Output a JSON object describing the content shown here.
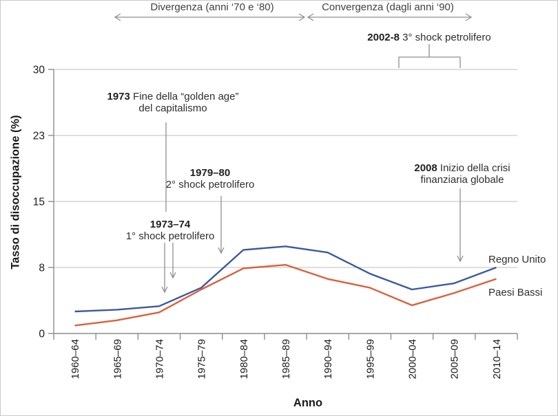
{
  "figure": {
    "xlabel": "Anno",
    "ylabel": "Tasso di disoccupazione (%)"
  },
  "phases": {
    "divergenza": "Divergenza (anni ‘70 e ‘80)",
    "convergenza": "Convergenza (dagli anni ‘90)"
  },
  "annotations": {
    "shock3": {
      "year": "2002-8",
      "text": "3° shock petrolifero"
    },
    "golden_age": {
      "year": "1973",
      "line1": "Fine della “golden age”",
      "line2": "del capitalismo"
    },
    "shock2": {
      "year": "1979–80",
      "text": "2° shock petrolifero"
    },
    "shock1": {
      "year": "1973–74",
      "text": "1° shock petrolifero"
    },
    "crisis": {
      "year": "2008",
      "line1": "Inizio della crisi",
      "line2": "finanziaria globale"
    }
  },
  "series_labels": {
    "uk": "Regno Unito",
    "nl": "Paesi Bassi"
  },
  "colors": {
    "uk_line": "#3b59a0",
    "nl_line": "#dd5f3a",
    "grid": "#c9c9c9",
    "axis": "#8c8c8c",
    "annotation_gray": "#8f8f8f",
    "tick_text": "#1a1a1a"
  },
  "chart_data": {
    "type": "line",
    "title": "",
    "xlabel": "Anno",
    "ylabel": "Tasso di disoccupazione (%)",
    "categories": [
      "1960–64",
      "1965–69",
      "1970–74",
      "1975–79",
      "1980–84",
      "1985–89",
      "1990–94",
      "1995–99",
      "2000–04",
      "2005–09",
      "2010–14"
    ],
    "series": [
      {
        "name": "Regno Unito",
        "color": "#3b59a0",
        "values": [
          2.5,
          2.7,
          3.1,
          5.2,
          9.5,
          9.9,
          9.2,
          6.8,
          5.0,
          5.7,
          7.5
        ]
      },
      {
        "name": "Paesi Bassi",
        "color": "#dd5f3a",
        "values": [
          0.9,
          1.5,
          2.4,
          5.0,
          7.4,
          7.8,
          6.2,
          5.2,
          3.2,
          4.6,
          6.2
        ]
      }
    ],
    "ylim": [
      0,
      30
    ],
    "yticks": {
      "values": [
        0,
        7.5,
        15,
        22.5,
        30
      ],
      "labels": [
        "0",
        "8",
        "15",
        "23",
        "30"
      ]
    },
    "grid": "horizontal",
    "legend_position": "right-inline",
    "annotations_text": [
      "Divergenza (anni ‘70 e ‘80)",
      "Convergenza (dagli anni ‘90)",
      "2002-8 3° shock petrolifero",
      "1973 Fine della “golden age” del capitalismo",
      "1979–80 2° shock petrolifero",
      "1973–74 1° shock petrolifero",
      "2008 Inizio della crisi finanziaria globale"
    ]
  }
}
